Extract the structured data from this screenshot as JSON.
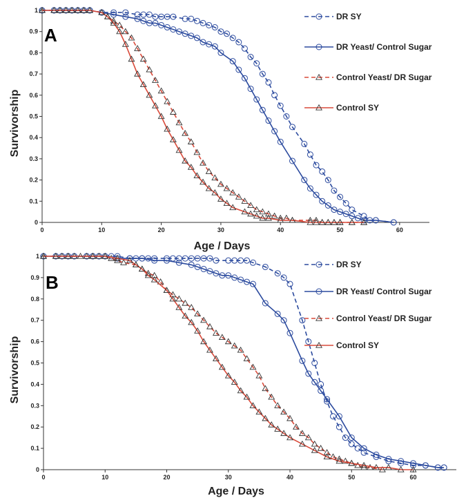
{
  "chart_data": [
    {
      "type": "line",
      "panel_label": "A",
      "xlabel": "Age / Days",
      "ylabel": "Survivorship",
      "xlim": [
        0,
        65
      ],
      "ylim": [
        0,
        1
      ],
      "xticks": [
        0,
        10,
        20,
        30,
        40,
        50,
        60
      ],
      "yticks": [
        0,
        0.1,
        0.2,
        0.3,
        0.4,
        0.5,
        0.6,
        0.7,
        0.8,
        0.9,
        1
      ],
      "grid": false,
      "legend_position": "top-right",
      "series": [
        {
          "name": "DR SY",
          "color": "#2b4a9e",
          "marker": "circle",
          "dash": true,
          "x": [
            0,
            2,
            3,
            4,
            5,
            6,
            7,
            8,
            10,
            12,
            14,
            16,
            17,
            18,
            19,
            20,
            21,
            22,
            24,
            25,
            26,
            27,
            28,
            29,
            30,
            31,
            32,
            33,
            34,
            35,
            36,
            37,
            38,
            39,
            40,
            41,
            42,
            44,
            45,
            46,
            47,
            48,
            49,
            50,
            51,
            52,
            54,
            55,
            56,
            59
          ],
          "y": [
            1,
            1,
            1,
            1,
            1,
            1,
            1,
            1,
            0.99,
            0.99,
            0.99,
            0.98,
            0.98,
            0.98,
            0.97,
            0.97,
            0.97,
            0.97,
            0.96,
            0.96,
            0.95,
            0.94,
            0.93,
            0.92,
            0.9,
            0.89,
            0.87,
            0.85,
            0.82,
            0.78,
            0.75,
            0.7,
            0.66,
            0.6,
            0.55,
            0.5,
            0.45,
            0.37,
            0.32,
            0.27,
            0.24,
            0.2,
            0.15,
            0.12,
            0.09,
            0.06,
            0.03,
            0.01,
            0.01,
            0
          ]
        },
        {
          "name": "DR Yeast/ Control Sugar",
          "color": "#2b4a9e",
          "marker": "circle",
          "dash": false,
          "x": [
            0,
            2,
            3,
            4,
            5,
            6,
            7,
            8,
            10,
            12,
            14,
            16,
            17,
            18,
            19,
            20,
            21,
            22,
            23,
            24,
            25,
            26,
            27,
            28,
            29,
            30,
            32,
            33,
            34,
            35,
            36,
            37,
            38,
            39,
            40,
            42,
            44,
            45,
            46,
            47,
            48,
            49,
            50,
            51,
            52,
            53,
            54,
            56,
            59
          ],
          "y": [
            1,
            1,
            1,
            1,
            1,
            1,
            1,
            1,
            0.99,
            0.98,
            0.97,
            0.96,
            0.95,
            0.94,
            0.94,
            0.93,
            0.92,
            0.91,
            0.9,
            0.89,
            0.88,
            0.87,
            0.85,
            0.84,
            0.83,
            0.8,
            0.76,
            0.72,
            0.68,
            0.63,
            0.58,
            0.53,
            0.48,
            0.43,
            0.38,
            0.29,
            0.2,
            0.16,
            0.13,
            0.1,
            0.08,
            0.06,
            0.05,
            0.04,
            0.03,
            0.02,
            0.01,
            0.01,
            0
          ]
        },
        {
          "name": "Control Yeast/ DR Sugar",
          "color": "#d94a3a",
          "marker": "triangle",
          "dash": true,
          "x": [
            0,
            2,
            3,
            4,
            5,
            6,
            7,
            8,
            10,
            11,
            12,
            13,
            14,
            15,
            16,
            17,
            18,
            19,
            20,
            21,
            22,
            23,
            24,
            25,
            26,
            27,
            28,
            29,
            30,
            31,
            32,
            33,
            34,
            35,
            36,
            37,
            38,
            39,
            40,
            41,
            42,
            45,
            46,
            47,
            48,
            49,
            50,
            52,
            54
          ],
          "y": [
            1,
            1,
            1,
            1,
            1,
            1,
            1,
            1,
            0.99,
            0.97,
            0.95,
            0.93,
            0.9,
            0.87,
            0.82,
            0.77,
            0.72,
            0.67,
            0.62,
            0.57,
            0.52,
            0.47,
            0.42,
            0.38,
            0.33,
            0.28,
            0.24,
            0.21,
            0.18,
            0.16,
            0.14,
            0.12,
            0.1,
            0.08,
            0.06,
            0.05,
            0.04,
            0.03,
            0.02,
            0.02,
            0.01,
            0.01,
            0.01,
            0,
            0,
            0,
            0,
            0,
            0
          ]
        },
        {
          "name": "Control SY",
          "color": "#d94a3a",
          "marker": "triangle",
          "dash": false,
          "x": [
            0,
            2,
            3,
            4,
            5,
            6,
            7,
            8,
            10,
            11,
            12,
            13,
            14,
            15,
            16,
            17,
            18,
            19,
            20,
            21,
            22,
            23,
            24,
            25,
            26,
            27,
            28,
            29,
            30,
            31,
            32,
            34,
            35,
            36,
            37,
            38,
            40,
            42,
            45,
            46,
            47,
            48,
            49,
            50,
            52,
            54
          ],
          "y": [
            1,
            1,
            1,
            1,
            1,
            1,
            1,
            1,
            0.99,
            0.97,
            0.94,
            0.9,
            0.84,
            0.77,
            0.7,
            0.65,
            0.6,
            0.55,
            0.5,
            0.44,
            0.39,
            0.34,
            0.29,
            0.26,
            0.22,
            0.19,
            0.16,
            0.14,
            0.11,
            0.09,
            0.07,
            0.05,
            0.04,
            0.03,
            0.02,
            0.02,
            0.01,
            0.01,
            0,
            0,
            0,
            0,
            0,
            0,
            0,
            0
          ]
        }
      ]
    },
    {
      "type": "line",
      "panel_label": "B",
      "xlabel": "Age / Days",
      "ylabel": "Survivorship",
      "xlim": [
        0,
        67
      ],
      "ylim": [
        0,
        1
      ],
      "xticks": [
        0,
        10,
        20,
        30,
        40,
        50,
        60
      ],
      "yticks": [
        0,
        0.1,
        0.2,
        0.3,
        0.4,
        0.5,
        0.6,
        0.7,
        0.8,
        0.9,
        1
      ],
      "grid": false,
      "legend_position": "top-right",
      "series": [
        {
          "name": "DR SY",
          "color": "#2b4a9e",
          "marker": "circle",
          "dash": true,
          "x": [
            0,
            2,
            3,
            4,
            5,
            7,
            8,
            9,
            10,
            11,
            12,
            14,
            15,
            16,
            17,
            18,
            20,
            21,
            22,
            23,
            24,
            25,
            26,
            27,
            28,
            30,
            31,
            32,
            33,
            34,
            36,
            38,
            39,
            40,
            42,
            43,
            44,
            45,
            46,
            47,
            48,
            49,
            50,
            51,
            52,
            54,
            56,
            58,
            60,
            62,
            64,
            65
          ],
          "y": [
            1,
            1,
            1,
            1,
            1,
            1,
            1,
            1,
            1,
            1,
            1,
            0.99,
            0.99,
            0.99,
            0.99,
            0.99,
            0.99,
            0.99,
            0.99,
            0.99,
            0.99,
            0.99,
            0.99,
            0.99,
            0.98,
            0.98,
            0.98,
            0.98,
            0.98,
            0.97,
            0.95,
            0.92,
            0.9,
            0.87,
            0.7,
            0.6,
            0.5,
            0.4,
            0.32,
            0.25,
            0.2,
            0.15,
            0.12,
            0.1,
            0.08,
            0.06,
            0.04,
            0.03,
            0.02,
            0.02,
            0.01,
            0.01
          ]
        },
        {
          "name": "DR Yeast/ Control Sugar",
          "color": "#2b4a9e",
          "marker": "circle",
          "dash": false,
          "x": [
            0,
            2,
            3,
            4,
            5,
            7,
            8,
            9,
            10,
            12,
            14,
            16,
            18,
            20,
            22,
            24,
            25,
            26,
            27,
            28,
            29,
            30,
            31,
            32,
            33,
            34,
            36,
            38,
            39,
            40,
            42,
            43,
            44,
            45,
            46,
            48,
            50,
            52,
            54,
            56,
            58,
            60,
            62,
            64,
            65
          ],
          "y": [
            1,
            1,
            1,
            1,
            1,
            1,
            1,
            1,
            1,
            0.99,
            0.99,
            0.99,
            0.98,
            0.98,
            0.97,
            0.96,
            0.95,
            0.94,
            0.93,
            0.92,
            0.91,
            0.91,
            0.9,
            0.89,
            0.88,
            0.87,
            0.78,
            0.73,
            0.7,
            0.64,
            0.51,
            0.45,
            0.41,
            0.37,
            0.33,
            0.25,
            0.15,
            0.1,
            0.07,
            0.05,
            0.04,
            0.03,
            0.02,
            0.01,
            0.01
          ]
        },
        {
          "name": "Control Yeast/ DR Sugar",
          "color": "#d94a3a",
          "marker": "triangle",
          "dash": true,
          "x": [
            0,
            2,
            3,
            4,
            5,
            7,
            8,
            9,
            10,
            11,
            12,
            13,
            15,
            16,
            17,
            18,
            19,
            20,
            21,
            22,
            23,
            24,
            25,
            26,
            27,
            28,
            29,
            30,
            31,
            32,
            33,
            34,
            35,
            36,
            37,
            38,
            39,
            40,
            41,
            42,
            43,
            44,
            45,
            46,
            47,
            48,
            49,
            50,
            51,
            52,
            53,
            55
          ],
          "y": [
            1,
            1,
            1,
            1,
            1,
            1,
            1,
            1,
            1,
            0.99,
            0.98,
            0.97,
            0.96,
            0.94,
            0.92,
            0.91,
            0.88,
            0.84,
            0.82,
            0.8,
            0.78,
            0.76,
            0.73,
            0.7,
            0.67,
            0.64,
            0.62,
            0.6,
            0.58,
            0.56,
            0.52,
            0.48,
            0.44,
            0.38,
            0.34,
            0.3,
            0.27,
            0.24,
            0.2,
            0.17,
            0.15,
            0.12,
            0.1,
            0.08,
            0.06,
            0.05,
            0.04,
            0.03,
            0.02,
            0.01,
            0.01,
            0
          ]
        },
        {
          "name": "Control SY",
          "color": "#d94a3a",
          "marker": "triangle",
          "dash": false,
          "x": [
            0,
            2,
            4,
            6,
            8,
            10,
            12,
            14,
            15,
            16,
            17,
            18,
            20,
            21,
            22,
            23,
            24,
            25,
            26,
            27,
            28,
            29,
            30,
            31,
            32,
            33,
            34,
            35,
            36,
            37,
            38,
            39,
            40,
            42,
            44,
            46,
            48,
            50,
            52,
            54,
            56,
            58,
            60
          ],
          "y": [
            1,
            1,
            1,
            1,
            1,
            1,
            0.99,
            0.98,
            0.96,
            0.94,
            0.91,
            0.89,
            0.84,
            0.8,
            0.76,
            0.72,
            0.69,
            0.65,
            0.6,
            0.56,
            0.52,
            0.48,
            0.44,
            0.41,
            0.37,
            0.34,
            0.3,
            0.27,
            0.24,
            0.21,
            0.19,
            0.17,
            0.15,
            0.12,
            0.09,
            0.06,
            0.04,
            0.03,
            0.02,
            0.01,
            0.01,
            0,
            0
          ]
        }
      ]
    }
  ]
}
